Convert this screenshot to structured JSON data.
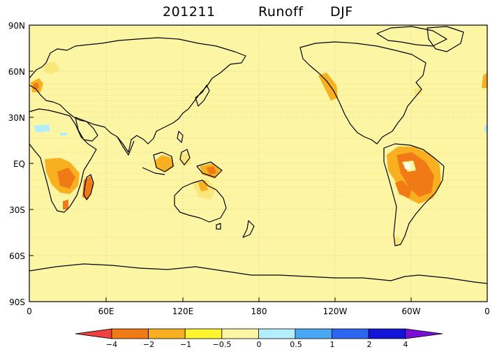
{
  "title": {
    "date": "201211",
    "variable": "Runoff",
    "season": "DJF"
  },
  "axes": {
    "lat_labels": [
      "90N",
      "60N",
      "30N",
      "EQ",
      "30S",
      "60S",
      "90S"
    ],
    "lon_labels": [
      "0",
      "60E",
      "120E",
      "180",
      "120W",
      "60W",
      "0"
    ]
  },
  "colorbar": {
    "labels": [
      "−4",
      "−2",
      "−1",
      "−0.5",
      "0",
      "0.5",
      "1",
      "2",
      "4"
    ],
    "colors": [
      "#f04040",
      "#f07a16",
      "#f8b020",
      "#fff430",
      "#fcf6a4",
      "#b4eefc",
      "#48a8f4",
      "#2a66f0",
      "#1414d8",
      "#7a10d8"
    ]
  },
  "colors": {
    "background": "#fcf6a4",
    "land_dry_light": "#fbe67c",
    "land_dry_mid": "#f8b020",
    "land_dry_strong": "#f07a16",
    "wet_light": "#b4eefc"
  }
}
